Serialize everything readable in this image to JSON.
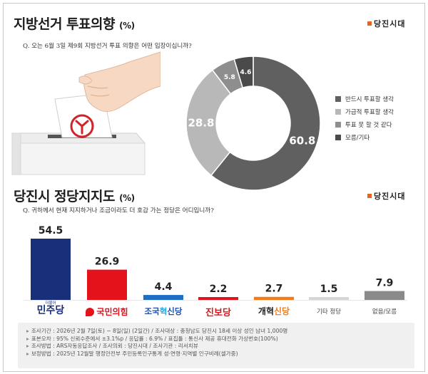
{
  "section1": {
    "title": "지방선거 투표의향",
    "unit": "(%)",
    "brand": "당진시대",
    "question": "Q. 오는 6월 3일 제9회 지방선거 투표 의향은 어떤 입장이십니까?"
  },
  "section2": {
    "title": "당진시 정당지지도",
    "unit": "(%)",
    "brand": "당진시대",
    "question": "Q. 귀하께서 현재 지지하거나 조금이라도 더 호감 가는 정당은 어디입니까?"
  },
  "chart_data": [
    {
      "type": "pie",
      "subtype": "donut",
      "categories": [
        "반드시 투표할 생각",
        "가급적 투표할 생각",
        "투표 못 할 것 같다",
        "모름/기타"
      ],
      "values": [
        60.8,
        28.8,
        5.8,
        4.6
      ],
      "colors": [
        "#606060",
        "#b8b8b8",
        "#8e8e8e",
        "#4a4a4a"
      ],
      "legend_position": "right"
    },
    {
      "type": "bar",
      "categories": [
        "더불어민주당",
        "국민의힘",
        "조국혁신당",
        "진보당",
        "개혁신당",
        "기타 정당",
        "없음/모름"
      ],
      "values": [
        54.5,
        26.9,
        4.4,
        2.2,
        2.7,
        1.5,
        7.9
      ],
      "value_labels": [
        "54.5",
        "26.9",
        "4.4",
        "2.2",
        "2.7",
        "1.5",
        "7.9"
      ],
      "colors": [
        "#1a2f7a",
        "#e3121b",
        "#1f6fc5",
        "#e0141f",
        "#f07c1a",
        "#d6d6d6",
        "#8a8a8a"
      ],
      "ylim": [
        0,
        60
      ]
    }
  ],
  "party_labels": {
    "p1_small": "더불어",
    "p1": "민주당",
    "p2": "국민의힘",
    "p3a": "조국",
    "p3b": "혁",
    "p3c": "신당",
    "p4": "진보당",
    "p5a": "개혁",
    "p5b": "신당",
    "p6": "기타 정당",
    "p7": "없음/모름"
  },
  "footer": [
    "조사기간 : 2026년 2월 7일(토) ~ 8일(일) (2일간) / 조사대상 : 충청남도 당진시 18세 이상 성인 남녀 1,000명",
    "표본오차 : 95% 신뢰수준에서 ±3.1%p / 응답률 : 6.9% / 표집틀 : 통신사 제공 휴대전화 가상번호(100%)",
    "조사방법 : ARS자동응답조사 / 조사의뢰 : 당진시대 / 조사기관 : 리서치뷰",
    "보정방법 : 2025년 12월말 행정안전부 주민등록인구통계 성·연령·지역별 인구비례(셀가중)"
  ]
}
